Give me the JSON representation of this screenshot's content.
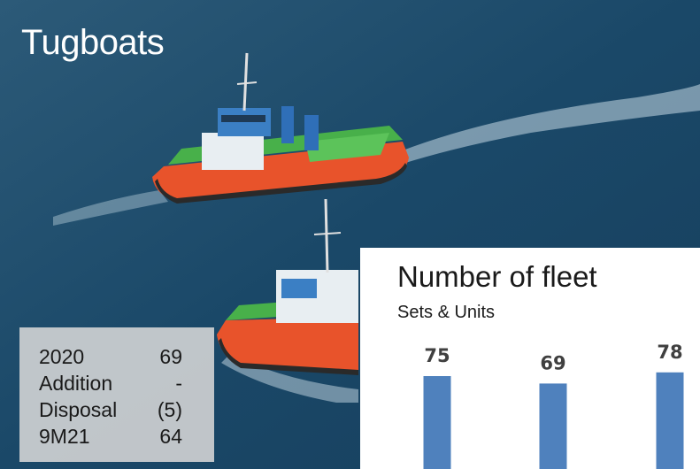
{
  "header": {
    "title": "Tugboats"
  },
  "stats": {
    "rows": [
      {
        "label": "2020",
        "value": "69"
      },
      {
        "label": "Addition",
        "value": "-"
      },
      {
        "label": "Disposal",
        "value": "(5)"
      },
      {
        "label": "9M21",
        "value": "64"
      }
    ]
  },
  "chart_data": {
    "type": "bar",
    "title": "Number of fleet",
    "subtitle": "Sets & Units",
    "categories": [
      "",
      "",
      ""
    ],
    "values": [
      75,
      69,
      78
    ],
    "data_labels": [
      "75",
      "69",
      "78"
    ],
    "xlabel": "",
    "ylabel": "",
    "ylim": [
      0,
      100
    ],
    "grid": false,
    "bar_color": "#4f81bd"
  },
  "colors": {
    "sea": "#1d4a6b",
    "hull": "#e8532b",
    "cabin": "#3b7fc4",
    "deck": "#48b04a"
  }
}
